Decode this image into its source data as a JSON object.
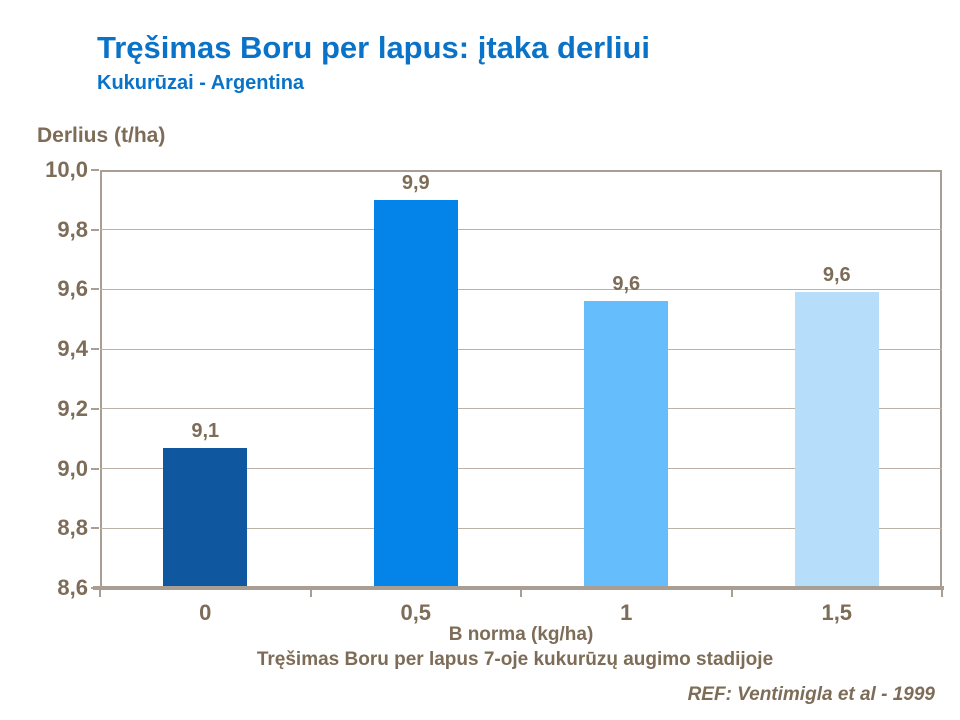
{
  "slide": {
    "title": "Tręšimas Boru per lapus: įtaka derliui",
    "subtitle": "Kukurūzai - Argentina",
    "reference": "REF: Ventimigla et al - 1999"
  },
  "chart_data": {
    "type": "bar",
    "categories": [
      "0",
      "0,5",
      "1",
      "1,5"
    ],
    "values": [
      9.07,
      9.9,
      9.56,
      9.59
    ],
    "value_labels": [
      "9,1",
      "9,9",
      "9,6",
      "9,6"
    ],
    "bar_colors": [
      "#0f58a0",
      "#0484e8",
      "#66bdfb",
      "#b6defb"
    ],
    "title": "Tręšimas Boru per lapus: įtaka derliui",
    "subtitle": "Kukurūzai - Argentina",
    "xlabel": "B norma (kg/ha)",
    "ylabel": "Derlius (t/ha)",
    "caption": "Tręšimas Boru per lapus 7-oje kukurūzų augimo stadijoje",
    "ylim": [
      8.6,
      10.0
    ],
    "ytick_step": 0.2,
    "ytick_labels": [
      "8,6",
      "8,8",
      "9,0",
      "9,2",
      "9,4",
      "9,6",
      "9,8",
      "10,0"
    ],
    "grid": true,
    "legend": "none",
    "colors": {
      "title_text": "#0a73c8",
      "axis_text": "#7d6c57",
      "gridline": "#bcb2a8",
      "axis_line": "#a89e94",
      "background": "#ffffff"
    }
  }
}
